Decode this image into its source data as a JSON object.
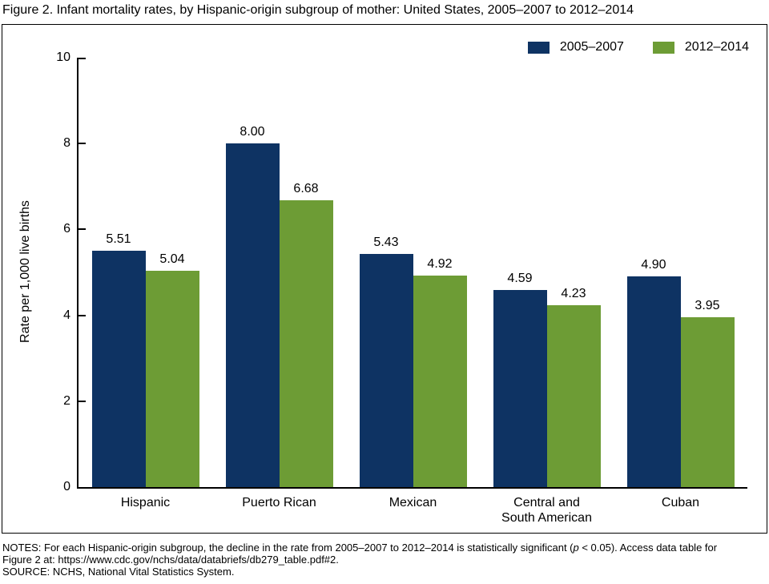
{
  "title": "Figure 2. Infant mortality rates, by Hispanic-origin subgroup of mother: United States, 2005–2007 to 2012–2014",
  "chart_data": {
    "type": "bar",
    "categories": [
      "Hispanic",
      "Puerto Rican",
      "Mexican",
      "Central and\nSouth American",
      "Cuban"
    ],
    "series": [
      {
        "name": "2005–2007",
        "color": "#0E3363",
        "values": [
          5.51,
          8.0,
          5.43,
          4.59,
          4.9
        ]
      },
      {
        "name": "2012–2014",
        "color": "#6D9C35",
        "values": [
          5.04,
          6.68,
          4.92,
          4.23,
          3.95
        ]
      }
    ],
    "xlabel": "",
    "ylabel": "Rate per 1,000 live births",
    "ylim": [
      0,
      10
    ],
    "yticks": [
      0,
      2,
      4,
      6,
      8,
      10
    ],
    "grid": false,
    "legend_position": "top-right",
    "value_label_decimals": 2
  },
  "notes": {
    "line1_pre": "NOTES: For each Hispanic-origin subgroup, the decline in the rate from 2005–2007 to 2012–2014 is statistically significant (",
    "p_italic": "p",
    "line1_post": " < 0.05). Access data table for",
    "line2": "Figure 2 at: https://www.cdc.gov/nchs/data/databriefs/db279_table.pdf#2.",
    "source": "SOURCE: NCHS, National Vital Statistics System."
  }
}
